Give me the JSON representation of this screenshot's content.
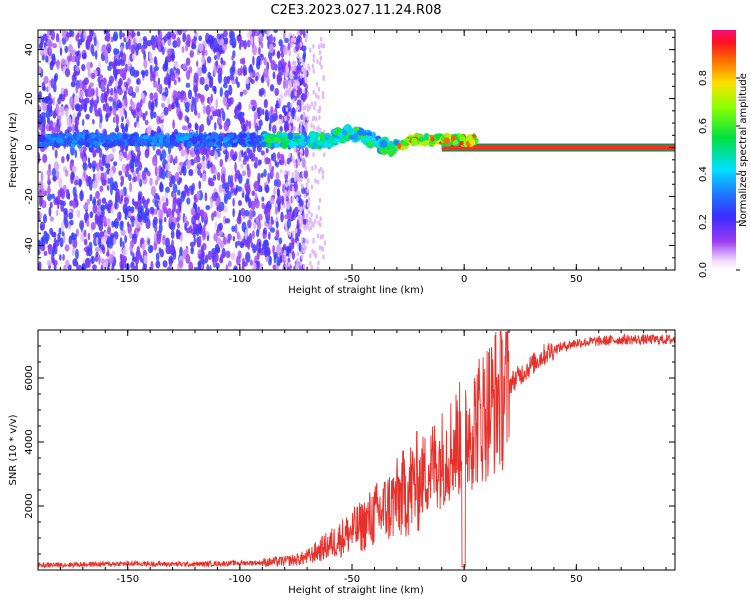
{
  "title": "C2E3.2023.027.11.24.R08",
  "chart_data": [
    {
      "type": "heatmap",
      "xlabel": "Height of straight line (km)",
      "ylabel": "Frequency (Hz)",
      "xlim": [
        -190,
        94
      ],
      "ylim": [
        -50,
        48
      ],
      "x_ticks": [
        -150,
        -100,
        -50,
        0,
        50
      ],
      "y_ticks": [
        -40,
        -20,
        0,
        20,
        40
      ],
      "colorbar": {
        "label": "Normalized spectral amplitude",
        "range": [
          0,
          1
        ],
        "ticks": [
          0.0,
          0.2,
          0.4,
          0.6,
          0.8
        ]
      },
      "carrier_frequency_hz": 0
    },
    {
      "type": "line",
      "xlabel": "Height of straight line (km)",
      "ylabel": "SNR (10 * v/v)",
      "xlim": [
        -190,
        94
      ],
      "ylim": [
        0,
        7500
      ],
      "x_ticks": [
        -150,
        -100,
        -50,
        0,
        50
      ],
      "y_ticks": [
        2000,
        4000,
        6000
      ],
      "color": "#e8302a",
      "series": [
        {
          "x": [
            -190,
            -150,
            -120,
            -100,
            -90,
            -80,
            -75,
            -70,
            -65,
            -60,
            -55,
            -50,
            -45,
            -40,
            -35,
            -30,
            -25,
            -20,
            -15,
            -10,
            -5,
            0,
            5,
            10,
            15,
            20,
            25,
            30,
            35,
            40,
            45,
            50,
            60,
            70,
            80,
            94
          ],
          "y": [
            150,
            200,
            180,
            220,
            230,
            280,
            320,
            400,
            600,
            800,
            1000,
            1200,
            1400,
            1700,
            1900,
            2200,
            2500,
            2800,
            3200,
            3500,
            3900,
            4200,
            4600,
            5000,
            5400,
            5800,
            6100,
            6400,
            6700,
            6900,
            7000,
            7100,
            7150,
            7200,
            7200,
            7200
          ]
        }
      ]
    }
  ]
}
